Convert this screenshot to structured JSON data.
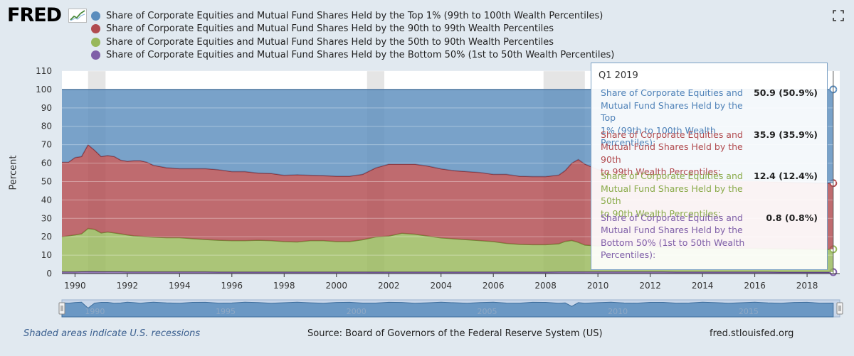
{
  "header": {
    "logo_text": "FRED",
    "logo_icon": "trend-line-icon",
    "fullscreen_icon": "fullscreen-icon"
  },
  "chart_data": {
    "type": "area",
    "stacked": true,
    "title": "",
    "xlabel": "",
    "ylabel": "Percent",
    "ylim": [
      0,
      110
    ],
    "yticks": [
      0,
      10,
      20,
      30,
      40,
      50,
      60,
      70,
      80,
      90,
      100,
      110
    ],
    "xlim": [
      1989.5,
      2019.25
    ],
    "xticks": [
      "1990",
      "1992",
      "1994",
      "1996",
      "1998",
      "2000",
      "2002",
      "2004",
      "2006",
      "2008",
      "2010",
      "2012",
      "2014",
      "2016",
      "2018"
    ],
    "legend_position": "top-left",
    "grid": true,
    "recessions": [
      [
        1990.5,
        1991.17
      ],
      [
        2001.17,
        2001.83
      ],
      [
        2007.92,
        2009.5
      ]
    ],
    "x": [
      1989.5,
      1989.75,
      1990.0,
      1990.25,
      1990.5,
      1990.75,
      1991.0,
      1991.25,
      1991.5,
      1991.75,
      1992.0,
      1992.25,
      1992.5,
      1992.75,
      1993.0,
      1993.5,
      1994.0,
      1994.5,
      1995.0,
      1995.5,
      1996.0,
      1996.5,
      1997.0,
      1997.5,
      1998.0,
      1998.5,
      1999.0,
      1999.5,
      2000.0,
      2000.5,
      2001.0,
      2001.5,
      2002.0,
      2002.5,
      2003.0,
      2003.5,
      2004.0,
      2004.5,
      2005.0,
      2005.5,
      2006.0,
      2006.5,
      2007.0,
      2007.5,
      2008.0,
      2008.5,
      2008.75,
      2009.0,
      2009.25,
      2009.5,
      2010.0,
      2010.5,
      2011.0,
      2011.5,
      2012.0,
      2012.5,
      2013.0,
      2013.5,
      2014.0,
      2014.5,
      2015.0,
      2015.5,
      2016.0,
      2016.5,
      2017.0,
      2017.5,
      2018.0,
      2018.5,
      2019.0
    ],
    "series": [
      {
        "name": "Share of Corporate Equities and Mutual Fund Shares Held by the Bottom 50% (1st to 50th Wealth Percentiles)",
        "color": "#7f5fa8",
        "values": [
          1.0,
          1.0,
          1.0,
          1.1,
          1.2,
          1.2,
          1.1,
          1.1,
          1.1,
          1.1,
          1.0,
          1.0,
          1.0,
          1.0,
          1.0,
          1.0,
          1.0,
          1.0,
          1.0,
          0.9,
          0.9,
          0.9,
          0.9,
          0.9,
          0.9,
          0.9,
          0.9,
          0.9,
          0.9,
          0.9,
          0.9,
          0.9,
          0.9,
          0.9,
          0.9,
          0.9,
          0.9,
          0.9,
          0.9,
          0.9,
          0.9,
          0.9,
          0.9,
          0.9,
          0.9,
          1.0,
          1.0,
          1.0,
          1.0,
          1.0,
          1.0,
          1.0,
          1.0,
          1.0,
          1.0,
          1.0,
          0.9,
          0.9,
          0.9,
          0.9,
          0.9,
          0.9,
          0.9,
          0.9,
          0.8,
          0.8,
          0.8,
          0.8,
          0.8
        ]
      },
      {
        "name": "Share of Corporate Equities and Mutual Fund Shares Held by the 50th to 90th Wealth Percentiles",
        "color": "#98b85a",
        "values": [
          19.0,
          19.5,
          20.0,
          20.5,
          23.3,
          22.8,
          21.0,
          21.5,
          21.0,
          20.5,
          20.0,
          19.5,
          19.3,
          19.0,
          18.8,
          18.5,
          18.5,
          18.0,
          17.5,
          17.2,
          17.0,
          17.0,
          17.2,
          17.0,
          16.5,
          16.3,
          17.0,
          17.0,
          16.5,
          16.5,
          17.5,
          19.0,
          19.5,
          21.0,
          20.5,
          19.5,
          18.5,
          18.0,
          17.5,
          17.0,
          16.5,
          15.5,
          15.0,
          14.8,
          14.8,
          15.2,
          16.5,
          17.0,
          16.0,
          14.5,
          14.0,
          14.0,
          14.0,
          14.0,
          13.5,
          13.5,
          13.0,
          13.0,
          13.0,
          12.8,
          12.8,
          12.8,
          12.8,
          12.7,
          12.7,
          12.6,
          12.5,
          12.4,
          12.4
        ]
      },
      {
        "name": "Share of Corporate Equities and Mutual Fund Shares Held by the 90th to 99th Wealth Percentiles",
        "color": "#b14b4f",
        "values": [
          40.5,
          40.0,
          42.0,
          42.0,
          45.5,
          43.0,
          41.5,
          41.5,
          41.5,
          40.0,
          40.0,
          40.8,
          41.0,
          40.5,
          39.0,
          38.0,
          37.5,
          38.0,
          38.5,
          38.3,
          37.5,
          37.5,
          36.5,
          36.5,
          36.0,
          36.5,
          35.5,
          35.3,
          35.5,
          35.5,
          35.5,
          37.5,
          39.0,
          37.5,
          38.0,
          38.0,
          37.5,
          37.0,
          37.0,
          37.0,
          36.5,
          37.5,
          37.0,
          37.0,
          37.0,
          37.3,
          38.5,
          42.0,
          45.0,
          44.0,
          41.5,
          41.0,
          40.0,
          39.5,
          39.0,
          38.5,
          38.0,
          37.5,
          37.0,
          37.0,
          36.8,
          36.5,
          36.5,
          36.3,
          36.2,
          36.1,
          36.0,
          35.9,
          35.9
        ]
      },
      {
        "name": "Share of Corporate Equities and Mutual Fund Shares Held by the Top 1% (99th to 100th Wealth Percentiles)",
        "color": "#5b8dbd",
        "values": [
          39.5,
          39.5,
          37.0,
          36.4,
          30.0,
          33.0,
          36.4,
          35.9,
          36.4,
          38.4,
          39.0,
          38.7,
          38.7,
          39.5,
          41.2,
          42.5,
          43.0,
          43.0,
          43.0,
          43.6,
          44.6,
          44.6,
          45.4,
          45.6,
          46.6,
          46.3,
          46.6,
          46.8,
          47.1,
          47.1,
          46.1,
          42.6,
          40.6,
          40.6,
          40.6,
          41.6,
          43.1,
          44.1,
          44.6,
          45.1,
          46.1,
          46.1,
          47.1,
          47.3,
          47.3,
          46.5,
          44.0,
          40.0,
          38.0,
          40.5,
          43.5,
          44.0,
          45.0,
          45.5,
          46.5,
          47.0,
          48.1,
          48.6,
          49.1,
          49.3,
          49.5,
          49.8,
          49.8,
          50.1,
          50.3,
          50.5,
          50.7,
          50.9,
          50.9
        ]
      }
    ]
  },
  "tooltip": {
    "heading": "Q1 2019",
    "rows": [
      {
        "name_lines": [
          "Share of Corporate Equities and",
          "Mutual Fund Shares Held by the Top",
          "1% (99th to 100th Wealth Percentiles):"
        ],
        "value": "50.9 (50.9%)",
        "color": "#4f82b8"
      },
      {
        "name_lines": [
          "Share of Corporate Equities and",
          "Mutual Fund Shares Held by the 90th",
          "to 99th Wealth Percentiles:"
        ],
        "value": "35.9 (35.9%)",
        "color": "#b14b4f"
      },
      {
        "name_lines": [
          "Share of Corporate Equities and",
          "Mutual Fund Shares Held by the 50th",
          "to 90th Wealth Percentiles:"
        ],
        "value": "12.4 (12.4%)",
        "color": "#8aab4a"
      },
      {
        "name_lines": [
          "Share of Corporate Equities and",
          "Mutual Fund Shares Held by the",
          "Bottom 50% (1st to 50th Wealth",
          "Percentiles):"
        ],
        "value": "0.8 (0.8%)",
        "color": "#7f5fa8"
      }
    ]
  },
  "navigator": {
    "ticks": [
      "1990",
      "1995",
      "2000",
      "2005",
      "2010",
      "2015"
    ]
  },
  "footer": {
    "note": "Shaded areas indicate U.S. recessions",
    "source": "Source: Board of Governors of the Federal Reserve System (US)",
    "site": "fred.stlouisfed.org"
  }
}
